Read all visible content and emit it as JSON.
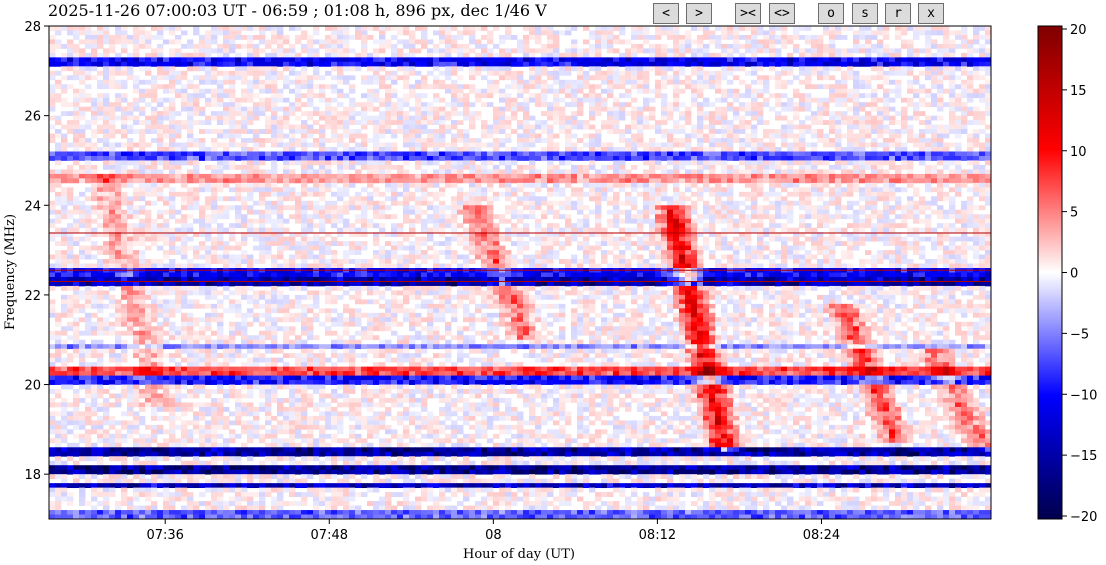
{
  "title": "2025-11-26 07:00:03 UT - 06:59 ; 01:08 h, 896 px, dec 1/46 V",
  "toolbar": {
    "buttons": [
      {
        "name": "prev-button",
        "label": "<"
      },
      {
        "name": "next-button",
        "label": ">"
      },
      {
        "name": "zoom-in-button",
        "label": "><"
      },
      {
        "name": "zoom-out-button",
        "label": "<>"
      },
      {
        "name": "o-button",
        "label": "o"
      },
      {
        "name": "s-button",
        "label": "s"
      },
      {
        "name": "r-button",
        "label": "r"
      },
      {
        "name": "x-button",
        "label": "x"
      }
    ]
  },
  "chart_data": {
    "type": "heatmap",
    "title": "",
    "xlabel": "Hour of day (UT)",
    "ylabel": "Frequency (MHz)",
    "x_range": [
      "07:26",
      "08:35"
    ],
    "x_ticks": [
      "07:36",
      "07:48",
      "08",
      "08:12",
      "08:24"
    ],
    "x_tick_values": [
      36,
      48,
      60,
      72,
      84
    ],
    "x_range_minutes": [
      27.5,
      96.4
    ],
    "y_range": [
      17.0,
      28.0
    ],
    "y_ticks": [
      "18",
      "20",
      "22",
      "24",
      "26",
      "28"
    ],
    "y_tick_values": [
      18,
      20,
      22,
      24,
      26,
      28
    ],
    "colorbar": {
      "colormap": "seismic",
      "range": [
        -20,
        20
      ],
      "ticks": [
        "20",
        "15",
        "10",
        "5",
        "0",
        "−5",
        "−10",
        "−15",
        "−20"
      ],
      "tick_values": [
        20,
        15,
        10,
        5,
        0,
        -5,
        -10,
        -15,
        -20
      ]
    },
    "horizontal_lines_mhz": [
      23.38,
      22.55,
      22.3
    ],
    "horizontal_line_color": "#b00000",
    "bands": [
      {
        "f": 27.2,
        "v": -14
      },
      {
        "f": 25.1,
        "v": -9
      },
      {
        "f": 24.6,
        "v": 5
      },
      {
        "f": 22.5,
        "v": -13
      },
      {
        "f": 22.3,
        "v": -18
      },
      {
        "f": 20.85,
        "v": -6
      },
      {
        "f": 20.3,
        "v": 9
      },
      {
        "f": 20.1,
        "v": -12
      },
      {
        "f": 18.5,
        "v": -19
      },
      {
        "f": 18.1,
        "v": -20
      },
      {
        "f": 17.75,
        "v": -17
      },
      {
        "f": 17.1,
        "v": -8
      }
    ],
    "bursts": [
      {
        "t": 58.5,
        "f_top": 24.0,
        "f_bottom": 21.0,
        "v": 8
      },
      {
        "t": 73.0,
        "f_top": 24.0,
        "f_bottom": 18.5,
        "v": 16
      },
      {
        "t": 85.5,
        "f_top": 21.8,
        "f_bottom": 18.7,
        "v": 10
      },
      {
        "t": 92.0,
        "f_top": 20.8,
        "f_bottom": 18.5,
        "v": 8
      },
      {
        "t": 31.5,
        "f_top": 24.7,
        "f_bottom": 19.5,
        "v": 5
      }
    ]
  }
}
